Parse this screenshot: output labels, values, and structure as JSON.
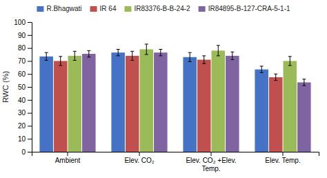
{
  "chart_data": {
    "type": "bar",
    "categories": [
      "Ambient",
      "Elev. CO₂",
      "Elev. CO₂ +Elev.\nTemp.",
      "Elev. Temp."
    ],
    "series": [
      {
        "name": "R.Bhagwati",
        "color": "#4472C4",
        "values": [
          73.5,
          76.5,
          73.0,
          63.5
        ],
        "errors": [
          3.0,
          2.5,
          3.5,
          2.5
        ]
      },
      {
        "name": "IR 64",
        "color": "#C0504D",
        "values": [
          70.0,
          74.0,
          71.0,
          57.5
        ],
        "errors": [
          3.5,
          3.5,
          3.0,
          2.5
        ]
      },
      {
        "name": "IR83376-B-B-24-2",
        "color": "#9BBB59",
        "values": [
          74.0,
          79.0,
          78.0,
          70.0
        ],
        "errors": [
          3.5,
          4.0,
          4.0,
          3.5
        ]
      },
      {
        "name": "IR84895-B-127-CRA-5-1-1",
        "color": "#8064A2",
        "values": [
          75.5,
          76.5,
          74.0,
          53.5
        ],
        "errors": [
          2.5,
          2.5,
          3.0,
          2.5
        ]
      }
    ],
    "ylabel": "RWC (%)",
    "ylim": [
      0,
      100
    ],
    "yticks": [
      0,
      10,
      20,
      30,
      40,
      50,
      60,
      70,
      80,
      90,
      100
    ],
    "grid": false,
    "legend": "top"
  }
}
